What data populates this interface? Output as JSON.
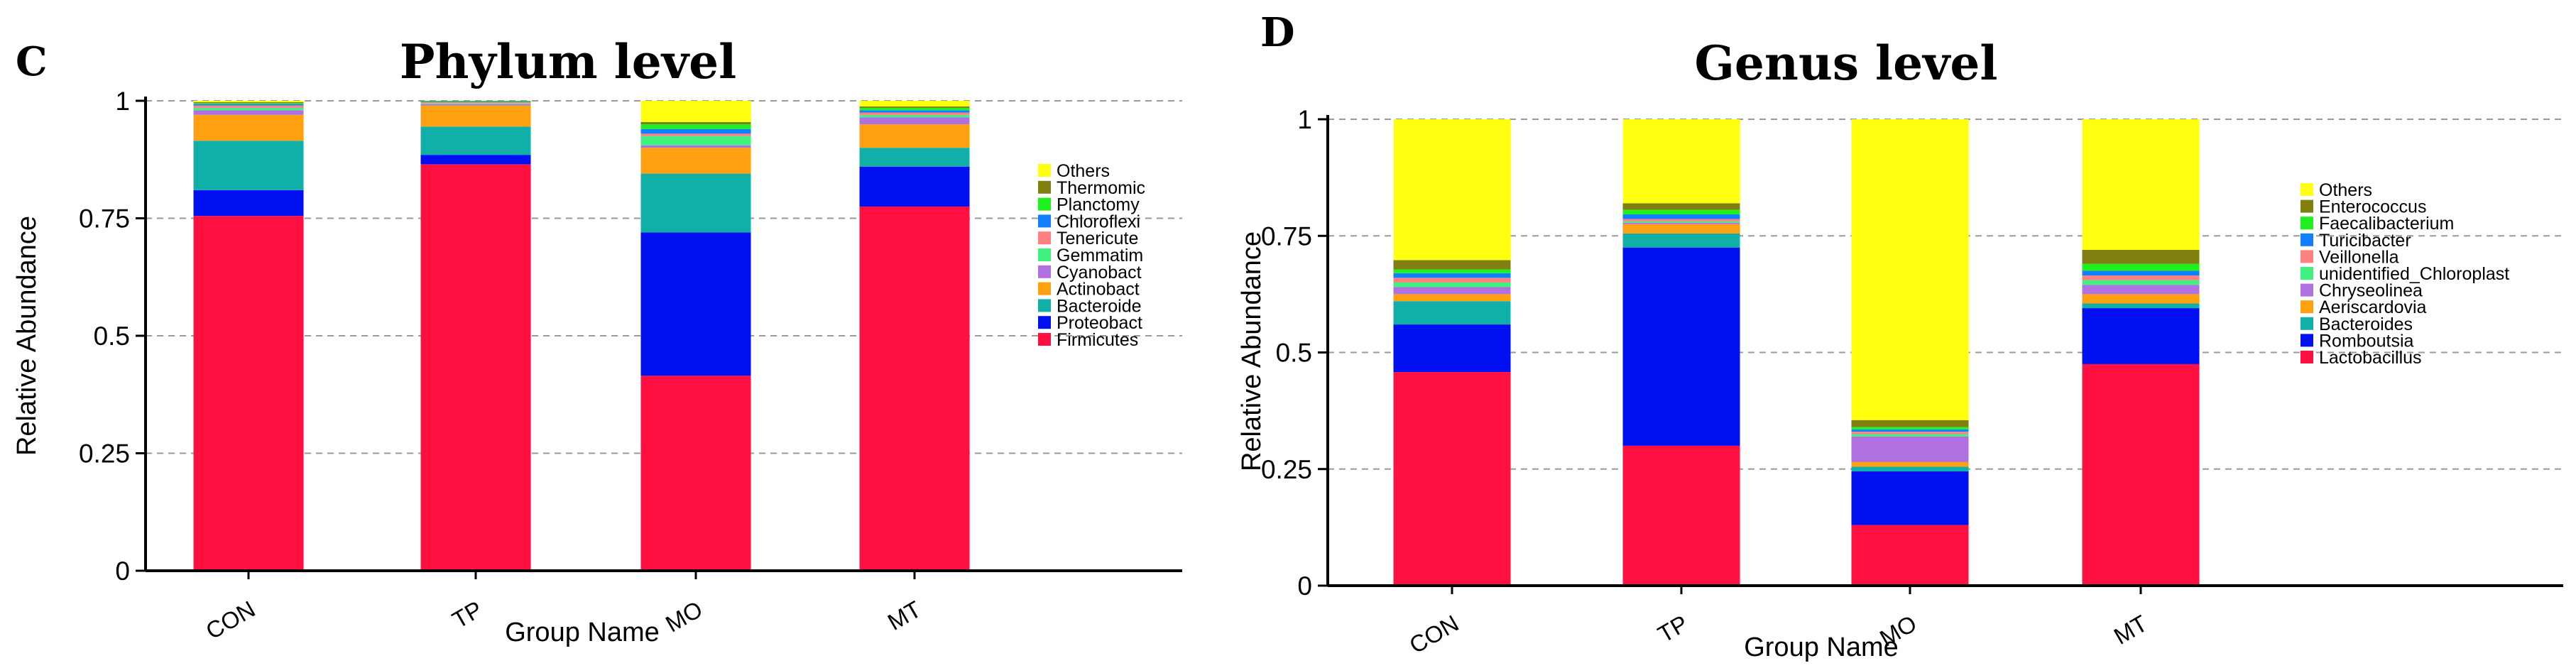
{
  "chart_data": [
    {
      "type": "bar",
      "stacked": true,
      "panel_label": "C",
      "title": "Phylum level",
      "xlabel": "Group Name",
      "ylabel": "Relative Abundance",
      "ylim": [
        0,
        1
      ],
      "yticks": [
        0,
        0.25,
        0.5,
        0.75,
        1
      ],
      "ytick_labels": [
        "0",
        "0.25",
        "0.5",
        "0.75",
        "1"
      ],
      "categories": [
        "CON",
        "TP",
        "MO",
        "MT"
      ],
      "legend_position": "right",
      "series": [
        {
          "name": "Firmicutes",
          "color": "#ff1040",
          "values": [
            0.755,
            0.865,
            0.415,
            0.775
          ]
        },
        {
          "name": "Proteobact",
          "color": "#0010f0",
          "values": [
            0.055,
            0.02,
            0.305,
            0.085
          ]
        },
        {
          "name": "Bacteroide",
          "color": "#10b0a8",
          "values": [
            0.105,
            0.06,
            0.125,
            0.04
          ]
        },
        {
          "name": "Actinobact",
          "color": "#ffa010",
          "values": [
            0.055,
            0.045,
            0.055,
            0.05
          ]
        },
        {
          "name": "Cyanobact",
          "color": "#b070e0",
          "values": [
            0.01,
            0.003,
            0.005,
            0.015
          ]
        },
        {
          "name": "Gemmatim",
          "color": "#40f080",
          "values": [
            0.005,
            0.002,
            0.02,
            0.005
          ]
        },
        {
          "name": "Tenericute",
          "color": "#ff8080",
          "values": [
            0.005,
            0.002,
            0.005,
            0.005
          ]
        },
        {
          "name": "Chloroflexi",
          "color": "#1080ff",
          "values": [
            0.003,
            0.001,
            0.01,
            0.005
          ]
        },
        {
          "name": "Planctomy",
          "color": "#20f020",
          "values": [
            0.002,
            0.001,
            0.01,
            0.005
          ]
        },
        {
          "name": "Thermomic",
          "color": "#808010",
          "values": [
            0.002,
            0.001,
            0.005,
            0.003
          ]
        },
        {
          "name": "Others",
          "color": "#ffff10",
          "values": [
            0.003,
            0.0,
            0.045,
            0.012
          ]
        }
      ]
    },
    {
      "type": "bar",
      "stacked": true,
      "panel_label": "D",
      "title": "Genus level",
      "xlabel": "Group Name",
      "ylabel": "Relative Abundance",
      "ylim": [
        0,
        1
      ],
      "yticks": [
        0,
        0.25,
        0.5,
        0.75,
        1
      ],
      "ytick_labels": [
        "0",
        "0.25",
        "0.5",
        "0.75",
        "1"
      ],
      "categories": [
        "CON",
        "TP",
        "MO",
        "MT"
      ],
      "legend_position": "right",
      "series": [
        {
          "name": "Lactobacillus",
          "color": "#ff1040",
          "values": [
            0.458,
            0.3,
            0.13,
            0.475
          ]
        },
        {
          "name": "Romboutsia",
          "color": "#0010f0",
          "values": [
            0.102,
            0.425,
            0.115,
            0.12
          ]
        },
        {
          "name": "Bacteroides",
          "color": "#10b0a8",
          "values": [
            0.05,
            0.03,
            0.01,
            0.01
          ]
        },
        {
          "name": "Aeriscardovia",
          "color": "#ffa010",
          "values": [
            0.015,
            0.02,
            0.01,
            0.02
          ]
        },
        {
          "name": "Chryseolinea",
          "color": "#b070e0",
          "values": [
            0.015,
            0.003,
            0.055,
            0.02
          ]
        },
        {
          "name": "unidentified_Chloroplast",
          "color": "#40f080",
          "values": [
            0.01,
            0.003,
            0.005,
            0.01
          ]
        },
        {
          "name": "Veillonella",
          "color": "#ff8080",
          "values": [
            0.01,
            0.005,
            0.005,
            0.01
          ]
        },
        {
          "name": "Turicibacter",
          "color": "#1080ff",
          "values": [
            0.01,
            0.01,
            0.005,
            0.01
          ]
        },
        {
          "name": "Faecalibacterium",
          "color": "#20f020",
          "values": [
            0.008,
            0.01,
            0.005,
            0.015
          ]
        },
        {
          "name": "Enterococcus",
          "color": "#808010",
          "values": [
            0.02,
            0.014,
            0.015,
            0.03
          ]
        },
        {
          "name": "Others",
          "color": "#ffff10",
          "values": [
            0.302,
            0.18,
            0.645,
            0.28
          ]
        }
      ]
    }
  ]
}
